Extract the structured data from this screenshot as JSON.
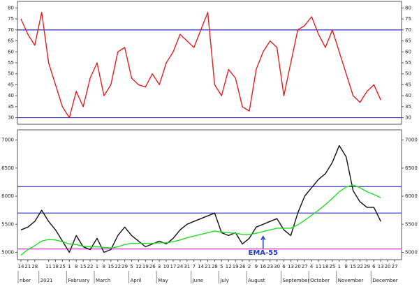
{
  "chart_data": [
    {
      "type": "line",
      "x": [
        0,
        1,
        2,
        3,
        4,
        5,
        6,
        7,
        8,
        9,
        10,
        11,
        12,
        13,
        14,
        15,
        16,
        17,
        18,
        19,
        20,
        21,
        22,
        23,
        24,
        25,
        26,
        27,
        28,
        29,
        30,
        31,
        32,
        33,
        34,
        35,
        36,
        37,
        38,
        39,
        40,
        41,
        42,
        43,
        44,
        45,
        46,
        47,
        48,
        49,
        50,
        51,
        52
      ],
      "series": [
        {
          "color": "#e02020",
          "values": [
            75,
            68,
            63,
            78,
            55,
            45,
            35,
            30,
            42,
            35,
            48,
            55,
            40,
            45,
            60,
            62,
            48,
            45,
            44,
            50,
            45,
            55,
            60,
            68,
            65,
            62,
            70,
            78,
            45,
            40,
            52,
            48,
            35,
            33,
            52,
            60,
            65,
            62,
            40,
            55,
            70,
            72,
            76,
            68,
            62,
            70,
            60,
            50,
            40,
            37,
            42,
            45,
            38
          ]
        }
      ],
      "xlim": [
        -0.5,
        55
      ],
      "ylim": [
        27,
        83
      ],
      "yticks": [
        30,
        35,
        40,
        45,
        50,
        55,
        60,
        65,
        70,
        75,
        80
      ],
      "reference_lines": [
        {
          "value": 70,
          "color": "#3030c0"
        },
        {
          "value": 30,
          "color": "#3030c0"
        }
      ]
    },
    {
      "type": "line",
      "x": [
        0,
        1,
        2,
        3,
        4,
        5,
        6,
        7,
        8,
        9,
        10,
        11,
        12,
        13,
        14,
        15,
        16,
        17,
        18,
        19,
        20,
        21,
        22,
        23,
        24,
        25,
        26,
        27,
        28,
        29,
        30,
        31,
        32,
        33,
        34,
        35,
        36,
        37,
        38,
        39,
        40,
        41,
        42,
        43,
        44,
        45,
        46,
        47,
        48,
        49,
        50,
        51,
        52
      ],
      "series": [
        {
          "color": "#111111",
          "values": [
            5400,
            5450,
            5550,
            5750,
            5550,
            5400,
            5200,
            5000,
            5300,
            5100,
            5050,
            5250,
            5000,
            5050,
            5300,
            5450,
            5300,
            5200,
            5100,
            5150,
            5200,
            5150,
            5250,
            5400,
            5500,
            5550,
            5600,
            5650,
            5700,
            5350,
            5300,
            5350,
            5150,
            5250,
            5450,
            5500,
            5550,
            5600,
            5400,
            5300,
            5700,
            6000,
            6150,
            6300,
            6400,
            6600,
            6900,
            6700,
            6100,
            5900,
            5800,
            5800,
            5550
          ]
        },
        {
          "color": "#22dd22",
          "values": [
            4950,
            5050,
            5120,
            5200,
            5230,
            5220,
            5190,
            5150,
            5140,
            5110,
            5100,
            5100,
            5090,
            5080,
            5100,
            5140,
            5160,
            5160,
            5160,
            5160,
            5170,
            5170,
            5190,
            5220,
            5260,
            5290,
            5320,
            5350,
            5380,
            5360,
            5350,
            5340,
            5320,
            5320,
            5340,
            5370,
            5400,
            5430,
            5430,
            5430,
            5490,
            5570,
            5660,
            5750,
            5850,
            5960,
            6080,
            6160,
            6200,
            6150,
            6080,
            6030,
            5970
          ]
        }
      ],
      "xlim": [
        -0.5,
        55
      ],
      "ylim": [
        4870,
        7180
      ],
      "yticks": [
        5000,
        5500,
        6000,
        6500,
        7000
      ],
      "reference_lines": [
        {
          "value": 6170,
          "color": "#3030c0"
        },
        {
          "value": 5700,
          "color": "#3030c0"
        },
        {
          "value": 5060,
          "color": "#d020d0"
        }
      ],
      "annotation": {
        "text": "EMA-55",
        "x": 35,
        "y": 5320
      },
      "xticks": [
        {
          "value": 0,
          "label": "14"
        },
        {
          "value": 1,
          "label": "21"
        },
        {
          "value": 2,
          "label": "28"
        },
        {
          "value": 4,
          "label": "11"
        },
        {
          "value": 5,
          "label": "18"
        },
        {
          "value": 6,
          "label": "25"
        },
        {
          "value": 7,
          "label": "1"
        },
        {
          "value": 8,
          "label": "8"
        },
        {
          "value": 9,
          "label": "15"
        },
        {
          "value": 10,
          "label": "22"
        },
        {
          "value": 11,
          "label": "1"
        },
        {
          "value": 12,
          "label": "8"
        },
        {
          "value": 13,
          "label": "15"
        },
        {
          "value": 14,
          "label": "22"
        },
        {
          "value": 15,
          "label": "29"
        },
        {
          "value": 16,
          "label": "5"
        },
        {
          "value": 17,
          "label": "12"
        },
        {
          "value": 18,
          "label": "19"
        },
        {
          "value": 19,
          "label": "26"
        },
        {
          "value": 20,
          "label": "3"
        },
        {
          "value": 21,
          "label": "10"
        },
        {
          "value": 22,
          "label": "17"
        },
        {
          "value": 23,
          "label": "24"
        },
        {
          "value": 24,
          "label": "31"
        },
        {
          "value": 25,
          "label": "7"
        },
        {
          "value": 26,
          "label": "14"
        },
        {
          "value": 27,
          "label": "21"
        },
        {
          "value": 28,
          "label": "28"
        },
        {
          "value": 29,
          "label": "5"
        },
        {
          "value": 30,
          "label": "12"
        },
        {
          "value": 31,
          "label": "19"
        },
        {
          "value": 32,
          "label": "26"
        },
        {
          "value": 33,
          "label": "2"
        },
        {
          "value": 34,
          "label": "9"
        },
        {
          "value": 35,
          "label": "16"
        },
        {
          "value": 36,
          "label": "23"
        },
        {
          "value": 37,
          "label": "30"
        },
        {
          "value": 38,
          "label": "6"
        },
        {
          "value": 39,
          "label": "13"
        },
        {
          "value": 40,
          "label": "20"
        },
        {
          "value": 41,
          "label": "27"
        },
        {
          "value": 42,
          "label": "4"
        },
        {
          "value": 43,
          "label": "11"
        },
        {
          "value": 44,
          "label": "18"
        },
        {
          "value": 45,
          "label": "25"
        },
        {
          "value": 46,
          "label": "1"
        },
        {
          "value": 47,
          "label": "8"
        },
        {
          "value": 48,
          "label": "15"
        },
        {
          "value": 49,
          "label": "22"
        },
        {
          "value": 50,
          "label": "29"
        },
        {
          "value": 51,
          "label": "6"
        },
        {
          "value": 52,
          "label": "13"
        },
        {
          "value": 53,
          "label": "20"
        },
        {
          "value": 54,
          "label": "27"
        }
      ],
      "xtick_months": [
        {
          "value": 0,
          "label": "nber"
        },
        {
          "value": 3,
          "label": "2021"
        },
        {
          "value": 7,
          "label": "February"
        },
        {
          "value": 11,
          "label": "March"
        },
        {
          "value": 16,
          "label": "April"
        },
        {
          "value": 20,
          "label": "May"
        },
        {
          "value": 25,
          "label": "June"
        },
        {
          "value": 29,
          "label": "July"
        },
        {
          "value": 33,
          "label": "August"
        },
        {
          "value": 38,
          "label": "September"
        },
        {
          "value": 42,
          "label": "October"
        },
        {
          "value": 46,
          "label": "November"
        },
        {
          "value": 51,
          "label": "December"
        }
      ]
    }
  ]
}
